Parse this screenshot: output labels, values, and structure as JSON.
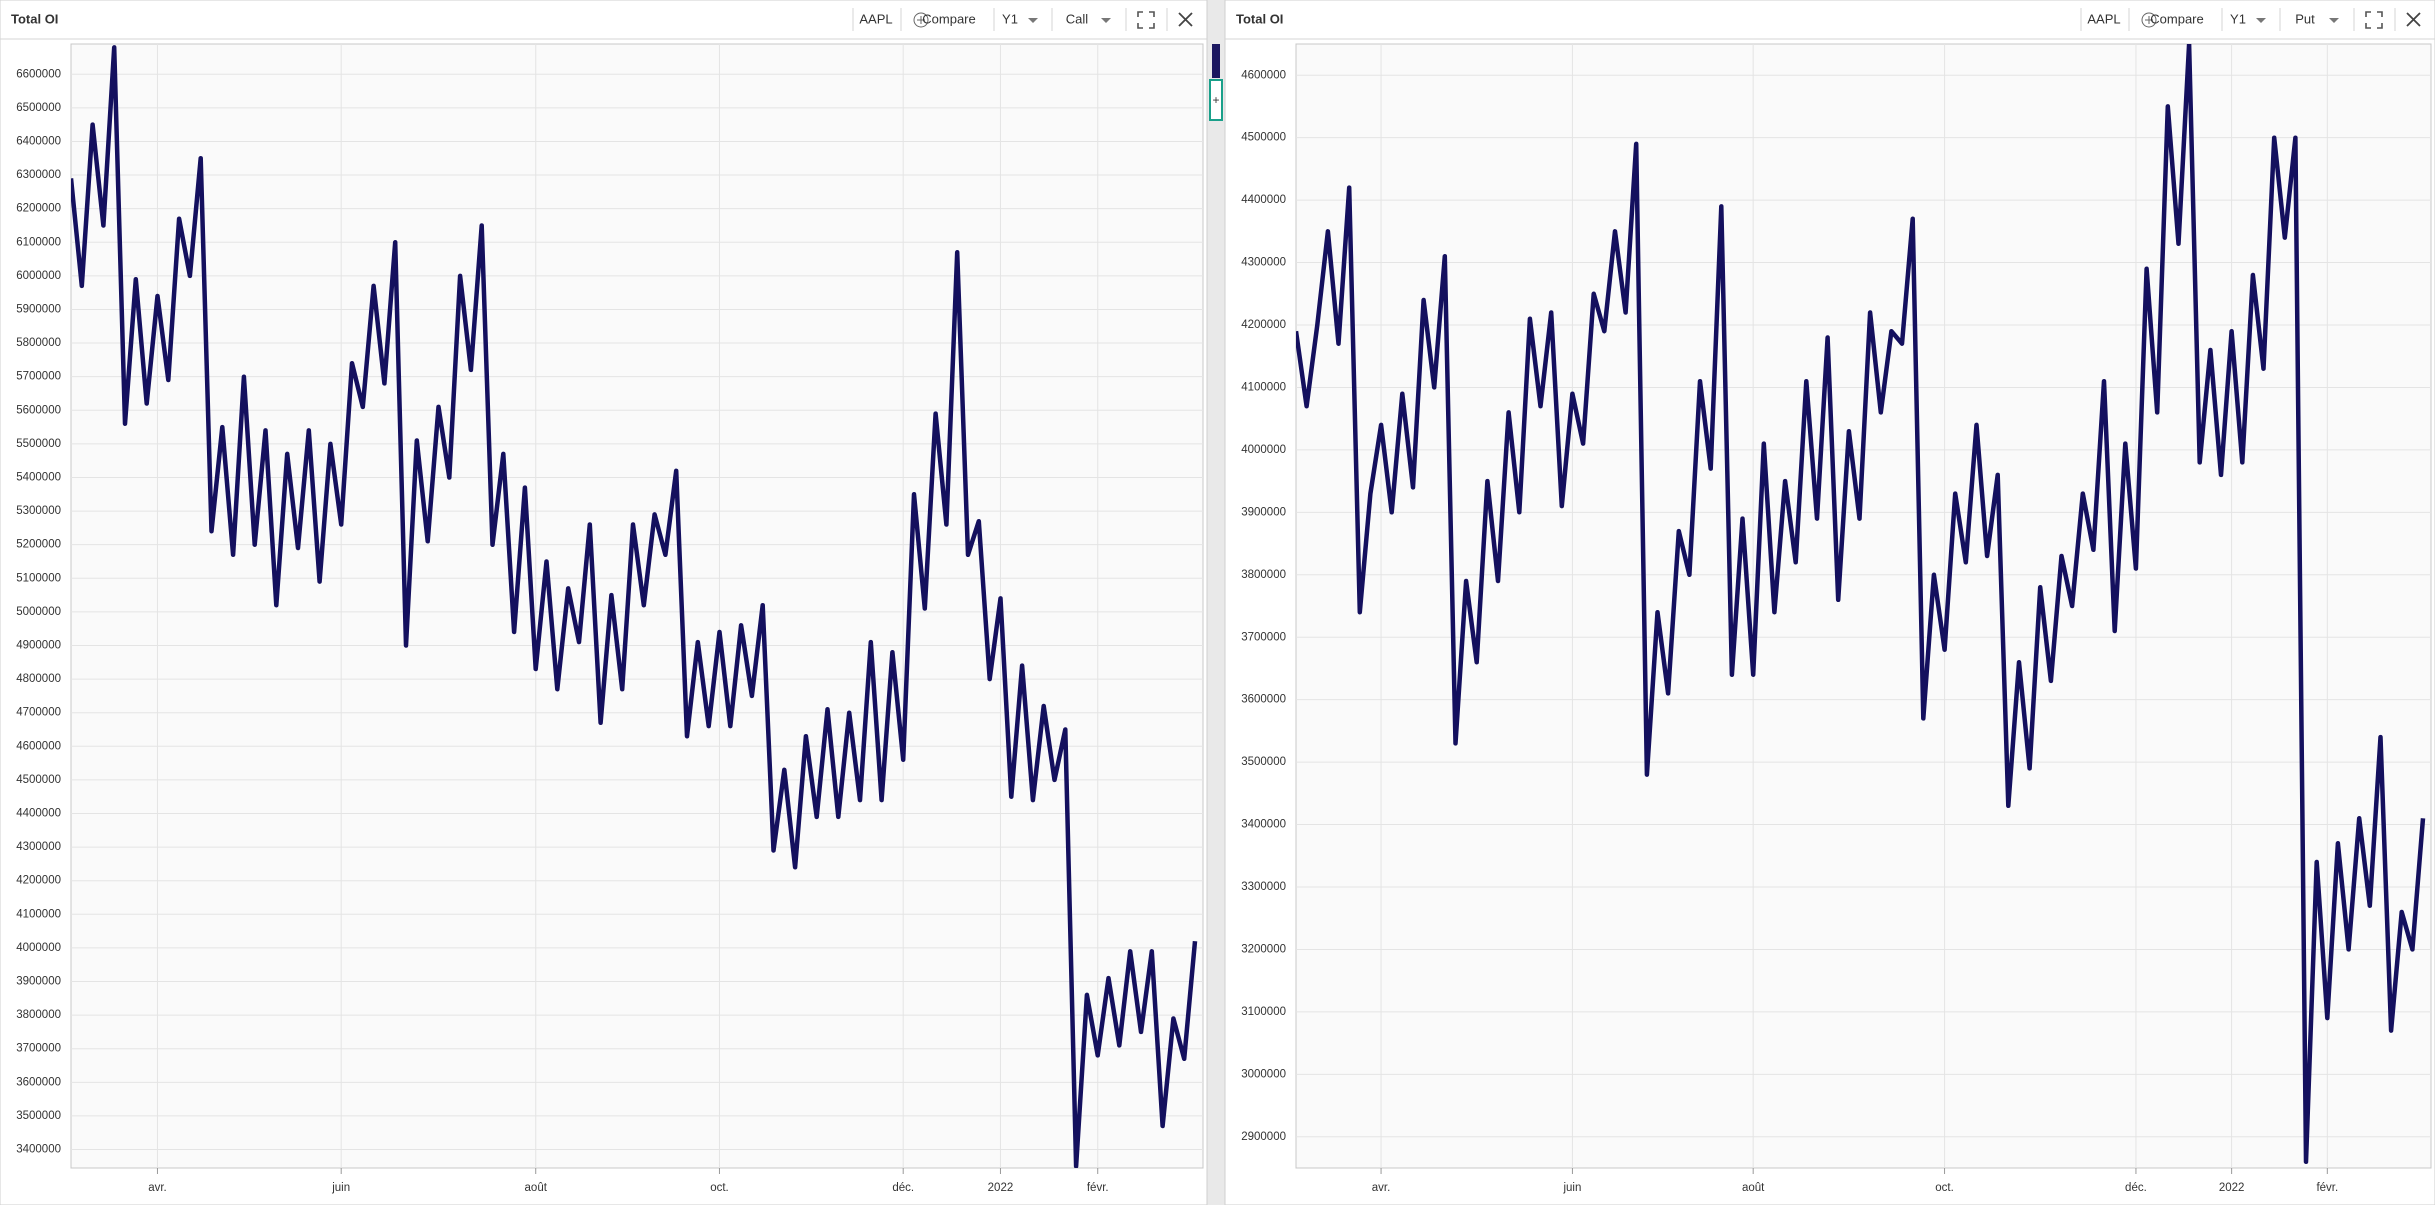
{
  "chart_data": [
    {
      "type": "line",
      "title": "Total OI",
      "ticker": "AAPL",
      "compare": "Compare",
      "period": "Y1",
      "option_type": "Call",
      "categories": [
        null,
        null,
        null,
        null,
        null,
        null,
        null,
        null,
        "avr.",
        null,
        null,
        null,
        null,
        null,
        null,
        null,
        null,
        null,
        null,
        null,
        null,
        null,
        null,
        null,
        null,
        "juin",
        null,
        null,
        null,
        null,
        null,
        null,
        null,
        null,
        null,
        null,
        null,
        null,
        null,
        null,
        null,
        null,
        null,
        "août",
        null,
        null,
        null,
        null,
        null,
        null,
        null,
        null,
        null,
        null,
        null,
        null,
        null,
        null,
        null,
        null,
        "oct.",
        null,
        null,
        null,
        null,
        null,
        null,
        null,
        null,
        null,
        null,
        null,
        null,
        null,
        null,
        null,
        null,
        "déc.",
        null,
        null,
        null,
        null,
        null,
        null,
        null,
        null,
        "2022",
        null,
        null,
        null,
        null,
        null,
        null,
        null,
        null,
        "févr.",
        null,
        null,
        null,
        null,
        null,
        null,
        null,
        null,
        null
      ],
      "values": [
        6290000,
        5970000,
        6450000,
        6150000,
        6680000,
        5560000,
        5990000,
        5620000,
        5940000,
        5690000,
        6170000,
        6000000,
        6350000,
        5240000,
        5550000,
        5170000,
        5700000,
        5200000,
        5540000,
        5020000,
        5470000,
        5190000,
        5540000,
        5090000,
        5500000,
        5260000,
        5740000,
        5610000,
        5970000,
        5680000,
        6100000,
        4900000,
        5510000,
        5210000,
        5610000,
        5400000,
        6000000,
        5720000,
        6150000,
        5200000,
        5470000,
        4940000,
        5370000,
        4830000,
        5150000,
        4770000,
        5070000,
        4910000,
        5260000,
        4670000,
        5050000,
        4770000,
        5260000,
        5020000,
        5290000,
        5170000,
        5420000,
        4630000,
        4910000,
        4660000,
        4940000,
        4660000,
        4960000,
        4750000,
        5020000,
        4290000,
        4530000,
        4240000,
        4630000,
        4390000,
        4710000,
        4390000,
        4700000,
        4440000,
        4910000,
        4440000,
        4880000,
        4560000,
        5350000,
        5010000,
        5590000,
        5260000,
        6070000,
        5170000,
        5270000,
        4800000,
        5040000,
        4450000,
        4840000,
        4440000,
        4720000,
        4500000,
        4650000,
        3350000,
        3860000,
        3680000,
        3910000,
        3710000,
        3990000,
        3750000,
        3990000,
        3470000,
        3790000,
        3670000,
        4020000
      ],
      "color": "#14105e",
      "ylim": [
        3345000,
        6690000
      ],
      "yticks": [
        3400000,
        3500000,
        3600000,
        3700000,
        3800000,
        3900000,
        4000000,
        4100000,
        4200000,
        4300000,
        4400000,
        4500000,
        4600000,
        4700000,
        4800000,
        4900000,
        5000000,
        5100000,
        5200000,
        5300000,
        5400000,
        5500000,
        5600000,
        5700000,
        5800000,
        5900000,
        6000000,
        6100000,
        6200000,
        6300000,
        6400000,
        6500000,
        6600000
      ],
      "grid": true
    },
    {
      "type": "line",
      "title": "Total OI",
      "ticker": "AAPL",
      "compare": "Compare",
      "period": "Y1",
      "option_type": "Put",
      "categories": [
        null,
        null,
        null,
        null,
        null,
        null,
        null,
        null,
        "avr.",
        null,
        null,
        null,
        null,
        null,
        null,
        null,
        null,
        null,
        null,
        null,
        null,
        null,
        null,
        null,
        null,
        null,
        "juin",
        null,
        null,
        null,
        null,
        null,
        null,
        null,
        null,
        null,
        null,
        null,
        null,
        null,
        null,
        null,
        null,
        "août",
        null,
        null,
        null,
        null,
        null,
        null,
        null,
        null,
        null,
        null,
        null,
        null,
        null,
        null,
        null,
        null,
        null,
        "oct.",
        null,
        null,
        null,
        null,
        null,
        null,
        null,
        null,
        null,
        null,
        null,
        null,
        null,
        null,
        null,
        null,
        null,
        "déc.",
        null,
        null,
        null,
        null,
        null,
        null,
        null,
        null,
        "2022",
        null,
        null,
        null,
        null,
        null,
        null,
        null,
        null,
        "févr.",
        null,
        null,
        null,
        null,
        null,
        null,
        null,
        null,
        null
      ],
      "values": [
        4190000,
        4070000,
        4200000,
        4350000,
        4170000,
        4420000,
        3740000,
        3930000,
        4040000,
        3900000,
        4090000,
        3940000,
        4240000,
        4100000,
        4310000,
        3530000,
        3790000,
        3660000,
        3950000,
        3790000,
        4060000,
        3900000,
        4210000,
        4070000,
        4220000,
        3910000,
        4090000,
        4010000,
        4250000,
        4190000,
        4350000,
        4220000,
        4490000,
        3480000,
        3740000,
        3610000,
        3870000,
        3800000,
        4110000,
        3970000,
        4390000,
        3640000,
        3890000,
        3640000,
        4010000,
        3740000,
        3950000,
        3820000,
        4110000,
        3890000,
        4180000,
        3760000,
        4030000,
        3890000,
        4220000,
        4060000,
        4190000,
        4170000,
        4370000,
        3570000,
        3800000,
        3680000,
        3930000,
        3820000,
        4040000,
        3830000,
        3960000,
        3430000,
        3660000,
        3490000,
        3780000,
        3630000,
        3830000,
        3750000,
        3930000,
        3840000,
        4110000,
        3710000,
        4010000,
        3810000,
        4290000,
        4060000,
        4550000,
        4330000,
        4650000,
        3980000,
        4160000,
        3960000,
        4190000,
        3980000,
        4280000,
        4130000,
        4500000,
        4340000,
        4500000,
        2860000,
        3340000,
        3090000,
        3370000,
        3200000,
        3410000,
        3270000,
        3540000,
        3070000,
        3260000,
        3200000,
        3410000
      ],
      "color": "#14105e",
      "ylim": [
        2850000,
        4650000
      ],
      "yticks": [
        2900000,
        3000000,
        3100000,
        3200000,
        3300000,
        3400000,
        3500000,
        3600000,
        3700000,
        3800000,
        3900000,
        4000000,
        4100000,
        4200000,
        4300000,
        4400000,
        4500000,
        4600000
      ],
      "grid": true
    }
  ]
}
